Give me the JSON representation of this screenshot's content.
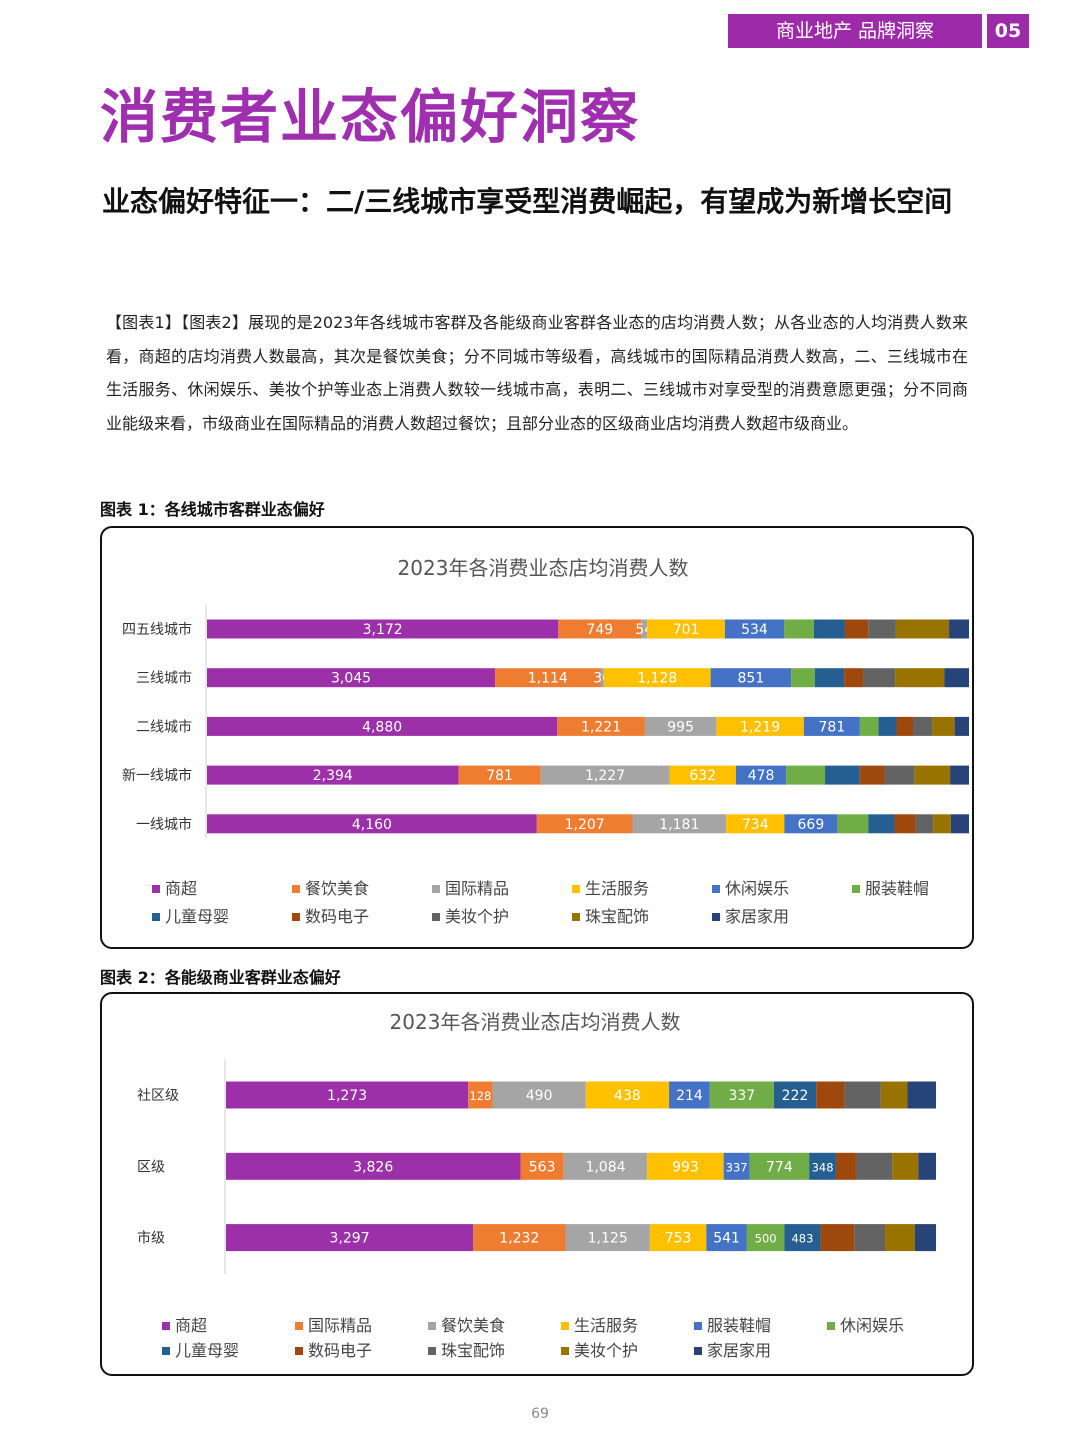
{
  "header": {
    "section_label": "商业地产 品牌洞察",
    "section_number": "05"
  },
  "title": "消费者业态偏好洞察",
  "subtitle": "业态偏好特征一：二/三线城市享受型消费崛起，有望成为新增长空间",
  "body": "【图表1】【图表2】展现的是2023年各线城市客群及各能级商业客群各业态的店均消费人数；从各业态的人均消费人数来看，商超的店均消费人数最高，其次是餐饮美食；分不同城市等级看，高线城市的国际精品消费人数高，二、三线城市在生活服务、休闲娱乐、美妆个护等业态上消费人数较一线城市高，表明二、三线城市对享受型的消费意愿更强；分不同商业能级来看，市级商业在国际精品的消费人数超过餐饮；且部分业态的区级商业店均消费人数超市级商业。",
  "figure1_label": "图表 1：各线城市客群业态偏好",
  "figure2_label": "图表 2：各能级商业客群业态偏好",
  "page_number": "69",
  "chart_data": [
    {
      "type": "bar",
      "orientation": "horizontal",
      "stacked": true,
      "title": "2023年各消费业态店均消费人数",
      "categories": [
        "四五线城市",
        "三线城市",
        "二线城市",
        "新一线城市",
        "一线城市"
      ],
      "series": [
        {
          "name": "商超",
          "color": "#9b30a8",
          "values": [
            3172,
            3045,
            4880,
            2394,
            4160
          ],
          "labels": [
            "3,172",
            "3,045",
            "4,880",
            "2,394",
            "4,160"
          ]
        },
        {
          "name": "餐饮美食",
          "color": "#ef7d31",
          "values": [
            749,
            1114,
            1221,
            781,
            1207
          ],
          "labels": [
            "749",
            "1,114",
            "1,221",
            "781",
            "1,207"
          ]
        },
        {
          "name": "国际精品",
          "color": "#a5a5a5",
          "values": [
            54,
            36,
            995,
            1227,
            1181
          ],
          "labels": [
            "54",
            "36",
            "995",
            "1,227",
            "1,181"
          ]
        },
        {
          "name": "生活服务",
          "color": "#ffc000",
          "values": [
            701,
            1128,
            1219,
            632,
            734
          ],
          "labels": [
            "701",
            "1,128",
            "1,219",
            "632",
            "734"
          ]
        },
        {
          "name": "休闲娱乐",
          "color": "#4472c4",
          "values": [
            534,
            851,
            781,
            478,
            669
          ],
          "labels": [
            "534",
            "851",
            "781",
            "478",
            "669"
          ]
        },
        {
          "name": "服装鞋帽",
          "color": "#70ad47",
          "values": [
            270,
            250,
            260,
            370,
            390
          ],
          "labels": [
            null,
            null,
            null,
            null,
            null
          ]
        },
        {
          "name": "儿童母婴",
          "color": "#255e91",
          "values": [
            280,
            310,
            250,
            330,
            330
          ],
          "labels": [
            null,
            null,
            null,
            null,
            null
          ]
        },
        {
          "name": "数码电子",
          "color": "#9e480e",
          "values": [
            210,
            200,
            230,
            240,
            270
          ],
          "labels": [
            null,
            null,
            null,
            null,
            null
          ]
        },
        {
          "name": "美妆个护",
          "color": "#636363",
          "values": [
            250,
            340,
            270,
            280,
            220
          ],
          "labels": [
            null,
            null,
            null,
            null,
            null
          ]
        },
        {
          "name": "珠宝配饰",
          "color": "#997300",
          "values": [
            480,
            520,
            310,
            340,
            220
          ],
          "labels": [
            null,
            null,
            null,
            null,
            null
          ]
        },
        {
          "name": "家居家用",
          "color": "#264478",
          "values": [
            180,
            260,
            200,
            180,
            230
          ],
          "labels": [
            null,
            null,
            null,
            null,
            null
          ]
        }
      ],
      "legend_position": "bottom",
      "grid": false
    },
    {
      "type": "bar",
      "orientation": "horizontal",
      "stacked": true,
      "title": "2023年各消费业态店均消费人数",
      "categories": [
        "社区级",
        "区级",
        "市级"
      ],
      "series": [
        {
          "name": "商超",
          "color": "#9b30a8",
          "values": [
            1273,
            3826,
            3297
          ],
          "labels": [
            "1,273",
            "3,826",
            "3,297"
          ]
        },
        {
          "name": "国际精品",
          "color": "#ef7d31",
          "values": [
            128,
            563,
            1232
          ],
          "labels": [
            "128",
            "563",
            "1,232"
          ]
        },
        {
          "name": "餐饮美食",
          "color": "#a5a5a5",
          "values": [
            490,
            1084,
            1125
          ],
          "labels": [
            "490",
            "1,084",
            "1,125"
          ]
        },
        {
          "name": "生活服务",
          "color": "#ffc000",
          "values": [
            438,
            993,
            753
          ],
          "labels": [
            "438",
            "993",
            "753"
          ]
        },
        {
          "name": "服装鞋帽",
          "color": "#4472c4",
          "values": [
            214,
            337,
            541
          ],
          "labels": [
            "214",
            "337",
            "541"
          ]
        },
        {
          "name": "休闲娱乐",
          "color": "#70ad47",
          "values": [
            337,
            774,
            500
          ],
          "labels": [
            "337",
            "774",
            "500"
          ]
        },
        {
          "name": "儿童母婴",
          "color": "#255e91",
          "values": [
            222,
            348,
            483
          ],
          "labels": [
            "222",
            "348",
            "483"
          ]
        },
        {
          "name": "数码电子",
          "color": "#9e480e",
          "values": [
            150,
            260,
            450
          ],
          "labels": [
            null,
            null,
            null
          ]
        },
        {
          "name": "珠宝配饰",
          "color": "#636363",
          "values": [
            190,
            470,
            410
          ],
          "labels": [
            null,
            null,
            null
          ]
        },
        {
          "name": "美妆个护",
          "color": "#997300",
          "values": [
            140,
            340,
            400
          ],
          "labels": [
            null,
            null,
            null
          ]
        },
        {
          "name": "家居家用",
          "color": "#264478",
          "values": [
            150,
            230,
            280
          ],
          "labels": [
            null,
            null,
            null
          ]
        }
      ],
      "legend_position": "bottom",
      "grid": false
    }
  ]
}
